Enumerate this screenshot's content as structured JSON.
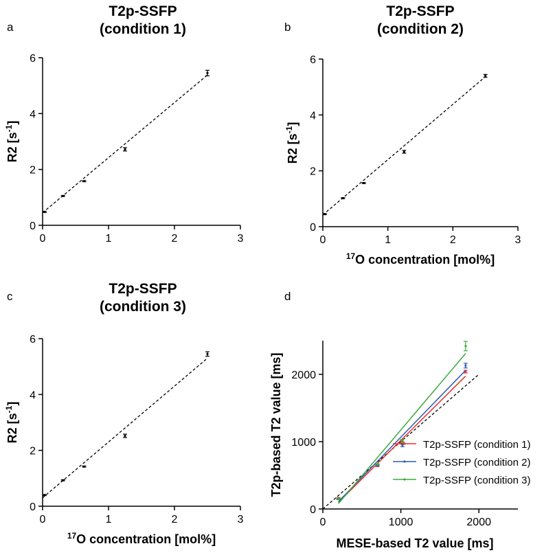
{
  "panels": {
    "a": {
      "letter": "a",
      "title_line1": "T2p-SSFP",
      "title_line2": "(condition 1)"
    },
    "b": {
      "letter": "b",
      "title_line1": "T2p-SSFP",
      "title_line2": "(condition 2)"
    },
    "c": {
      "letter": "c",
      "title_line1": "T2p-SSFP",
      "title_line2": "(condition 3)"
    },
    "d": {
      "letter": "d"
    }
  },
  "chart_data": [
    {
      "id": "a",
      "type": "scatter",
      "ylabel": "R2 [s⁻¹]",
      "xlabel": "",
      "xlim": [
        0,
        3
      ],
      "ylim": [
        0,
        6
      ],
      "xticks": [
        0,
        1,
        2,
        3
      ],
      "yticks": [
        0,
        2,
        4,
        6
      ],
      "points": [
        {
          "x": 0.03,
          "y": 0.48,
          "err": 0.02
        },
        {
          "x": 0.31,
          "y": 1.05,
          "err": 0.02
        },
        {
          "x": 0.63,
          "y": 1.58,
          "err": 0.02
        },
        {
          "x": 1.25,
          "y": 2.72,
          "err": 0.06
        },
        {
          "x": 2.5,
          "y": 5.45,
          "err": 0.1
        }
      ],
      "fit": {
        "x0": 0.0,
        "y0": 0.45,
        "x1": 2.5,
        "y1": 5.38,
        "style": "dashed"
      }
    },
    {
      "id": "b",
      "type": "scatter",
      "ylabel": "R2 [s⁻¹]",
      "xlabel": "17O concentration [mol%]",
      "xlim": [
        0,
        3
      ],
      "ylim": [
        0,
        6
      ],
      "xticks": [
        0,
        1,
        2,
        3
      ],
      "yticks": [
        0,
        2,
        4,
        6
      ],
      "points": [
        {
          "x": 0.03,
          "y": 0.45,
          "err": 0.02
        },
        {
          "x": 0.31,
          "y": 1.02,
          "err": 0.02
        },
        {
          "x": 0.63,
          "y": 1.56,
          "err": 0.02
        },
        {
          "x": 1.25,
          "y": 2.68,
          "err": 0.05
        },
        {
          "x": 2.5,
          "y": 5.4,
          "err": 0.05
        }
      ],
      "fit": {
        "x0": 0.0,
        "y0": 0.42,
        "x1": 2.5,
        "y1": 5.37,
        "style": "dashed"
      }
    },
    {
      "id": "c",
      "type": "scatter",
      "ylabel": "R2 [s⁻¹]",
      "xlabel": "17O concentration [mol%]",
      "xlim": [
        0,
        3
      ],
      "ylim": [
        0,
        6
      ],
      "xticks": [
        0,
        1,
        2,
        3
      ],
      "yticks": [
        0,
        2,
        4,
        6
      ],
      "points": [
        {
          "x": 0.03,
          "y": 0.4,
          "err": 0.02
        },
        {
          "x": 0.31,
          "y": 0.93,
          "err": 0.02
        },
        {
          "x": 0.63,
          "y": 1.42,
          "err": 0.02
        },
        {
          "x": 1.25,
          "y": 2.52,
          "err": 0.06
        },
        {
          "x": 2.5,
          "y": 5.45,
          "err": 0.08
        }
      ],
      "fit": {
        "x0": 0.0,
        "y0": 0.3,
        "x1": 2.5,
        "y1": 5.3,
        "style": "dashed"
      }
    },
    {
      "id": "d",
      "type": "line",
      "ylabel": "T2p-based T2 value [ms]",
      "xlabel": "MESE-based T2 value [ms]",
      "xlim": [
        0,
        2500
      ],
      "ylim": [
        0,
        2500
      ],
      "xticks": [
        0,
        1000,
        2000
      ],
      "yticks": [
        0,
        1000,
        2000
      ],
      "identity": {
        "x0": 0,
        "y0": 0,
        "x1": 2000,
        "y1": 2000,
        "style": "dashed"
      },
      "series": [
        {
          "name": "T2p-SSFP (condition 1)",
          "color": "#e8322b",
          "points": [
            {
              "x": 200,
              "y": 160,
              "err": 10
            },
            {
              "x": 700,
              "y": 640,
              "err": 10
            },
            {
              "x": 1020,
              "y": 980,
              "err": 20
            },
            {
              "x": 1830,
              "y": 2040,
              "err": 20
            }
          ],
          "fit": {
            "x0": 200,
            "y0": 100,
            "x1": 1830,
            "y1": 1975
          }
        },
        {
          "name": "T2p-SSFP (condition 2)",
          "color": "#2a5ab5",
          "points": [
            {
              "x": 200,
              "y": 150,
              "err": 10
            },
            {
              "x": 700,
              "y": 650,
              "err": 10
            },
            {
              "x": 1020,
              "y": 950,
              "err": 25
            },
            {
              "x": 1830,
              "y": 2130,
              "err": 35
            }
          ],
          "fit": {
            "x0": 200,
            "y0": 110,
            "x1": 1830,
            "y1": 2060
          }
        },
        {
          "name": "T2p-SSFP (condition 3)",
          "color": "#3aaa3a",
          "points": [
            {
              "x": 200,
              "y": 150,
              "err": 10
            },
            {
              "x": 700,
              "y": 660,
              "err": 10
            },
            {
              "x": 1020,
              "y": 1010,
              "err": 25
            },
            {
              "x": 1830,
              "y": 2420,
              "err": 70
            }
          ],
          "fit": {
            "x0": 200,
            "y0": 80,
            "x1": 1830,
            "y1": 2310
          }
        }
      ],
      "legend_position": "bottom-right"
    }
  ]
}
